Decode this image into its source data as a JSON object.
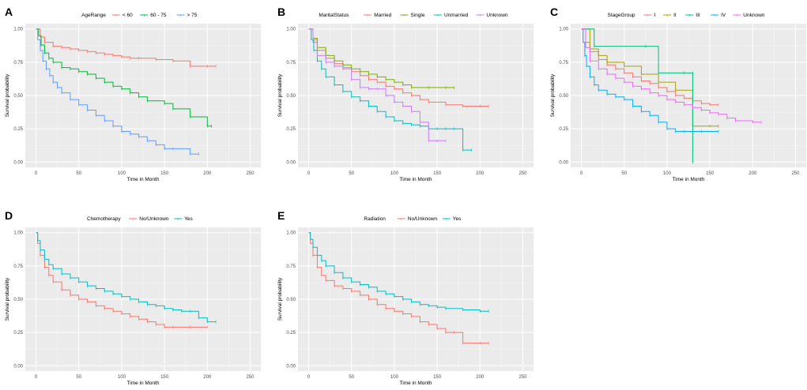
{
  "chart_data": [
    {
      "panel": "A",
      "type": "line",
      "legend_title": "AgeRange",
      "xlabel": "Time in Month",
      "ylabel": "Survival probability",
      "xlim": [
        0,
        250
      ],
      "ylim": [
        0,
        1
      ],
      "xticks": [
        "0",
        "50",
        "100",
        "150",
        "200",
        "250"
      ],
      "yticks": [
        "0.00",
        "0.25",
        "0.50",
        "0.75",
        "1.00"
      ],
      "series": [
        {
          "name": "< 60",
          "color": "#f8766d",
          "x": [
            0,
            5,
            10,
            20,
            30,
            40,
            50,
            60,
            70,
            80,
            90,
            100,
            110,
            120,
            140,
            160,
            180,
            200,
            210
          ],
          "y": [
            1.0,
            0.94,
            0.9,
            0.87,
            0.86,
            0.85,
            0.84,
            0.83,
            0.82,
            0.81,
            0.8,
            0.79,
            0.78,
            0.78,
            0.77,
            0.76,
            0.72,
            0.72,
            0.72
          ]
        },
        {
          "name": "60 - 75",
          "color": "#00ba38",
          "x": [
            0,
            3,
            6,
            10,
            15,
            20,
            30,
            40,
            50,
            60,
            70,
            80,
            90,
            100,
            110,
            120,
            130,
            150,
            160,
            180,
            200,
            205
          ],
          "y": [
            1.0,
            0.95,
            0.88,
            0.82,
            0.78,
            0.75,
            0.71,
            0.7,
            0.68,
            0.66,
            0.63,
            0.6,
            0.57,
            0.55,
            0.52,
            0.49,
            0.46,
            0.44,
            0.4,
            0.34,
            0.27,
            0.27
          ]
        },
        {
          "name": "> 75",
          "color": "#619cff",
          "x": [
            0,
            2,
            5,
            8,
            12,
            16,
            20,
            25,
            30,
            40,
            50,
            60,
            70,
            80,
            90,
            100,
            110,
            120,
            130,
            140,
            150,
            160,
            180,
            190
          ],
          "y": [
            1.0,
            0.92,
            0.84,
            0.76,
            0.7,
            0.65,
            0.6,
            0.56,
            0.52,
            0.47,
            0.43,
            0.39,
            0.35,
            0.31,
            0.27,
            0.23,
            0.21,
            0.19,
            0.16,
            0.13,
            0.1,
            0.1,
            0.06,
            0.06
          ]
        }
      ]
    },
    {
      "panel": "B",
      "type": "line",
      "legend_title": "MaritalStatus",
      "xlabel": "Time in Month",
      "ylabel": "Survival probability",
      "xlim": [
        0,
        250
      ],
      "ylim": [
        0,
        1
      ],
      "xticks": [
        "0",
        "50",
        "100",
        "150",
        "200",
        "250"
      ],
      "yticks": [
        "0.00",
        "0.25",
        "0.50",
        "0.75",
        "1.00"
      ],
      "series": [
        {
          "name": "Married",
          "color": "#f8766d",
          "x": [
            0,
            5,
            10,
            20,
            30,
            40,
            50,
            60,
            70,
            80,
            90,
            100,
            110,
            120,
            130,
            140,
            160,
            180,
            200,
            210
          ],
          "y": [
            1.0,
            0.92,
            0.84,
            0.78,
            0.74,
            0.71,
            0.68,
            0.65,
            0.62,
            0.6,
            0.57,
            0.55,
            0.52,
            0.5,
            0.47,
            0.45,
            0.43,
            0.42,
            0.42,
            0.42
          ]
        },
        {
          "name": "Single",
          "color": "#7cae00",
          "x": [
            0,
            5,
            10,
            20,
            30,
            40,
            50,
            60,
            70,
            80,
            90,
            100,
            110,
            120,
            140,
            160,
            170
          ],
          "y": [
            1.0,
            0.93,
            0.86,
            0.8,
            0.76,
            0.73,
            0.7,
            0.68,
            0.66,
            0.64,
            0.62,
            0.6,
            0.58,
            0.56,
            0.56,
            0.56,
            0.56
          ]
        },
        {
          "name": "Unmarried",
          "color": "#00bfc4",
          "x": [
            0,
            3,
            6,
            10,
            15,
            20,
            30,
            40,
            50,
            60,
            70,
            80,
            90,
            100,
            110,
            120,
            130,
            140,
            150,
            160,
            170,
            180,
            190
          ],
          "y": [
            1.0,
            0.92,
            0.84,
            0.76,
            0.7,
            0.64,
            0.58,
            0.53,
            0.49,
            0.46,
            0.42,
            0.38,
            0.34,
            0.31,
            0.29,
            0.28,
            0.27,
            0.25,
            0.25,
            0.25,
            0.25,
            0.09,
            0.09
          ]
        },
        {
          "name": "Unknown",
          "color": "#c77cff",
          "x": [
            0,
            5,
            10,
            20,
            30,
            40,
            50,
            60,
            70,
            80,
            90,
            100,
            110,
            120,
            130,
            140,
            150,
            160
          ],
          "y": [
            1.0,
            0.9,
            0.8,
            0.75,
            0.72,
            0.7,
            0.62,
            0.56,
            0.55,
            0.55,
            0.5,
            0.45,
            0.42,
            0.38,
            0.3,
            0.16,
            0.16,
            0.16
          ]
        }
      ]
    },
    {
      "panel": "C",
      "type": "line",
      "legend_title": "StageGroup",
      "xlabel": "Time in Month",
      "ylabel": "Survival probability",
      "xlim": [
        0,
        250
      ],
      "ylim": [
        0,
        1
      ],
      "xticks": [
        "0",
        "50",
        "100",
        "150",
        "200",
        "250"
      ],
      "yticks": [
        "0.00",
        "0.25",
        "0.50",
        "0.75",
        "1.00"
      ],
      "series": [
        {
          "name": "I",
          "color": "#f8766d",
          "x": [
            0,
            5,
            10,
            20,
            30,
            40,
            50,
            60,
            70,
            80,
            90,
            100,
            110,
            120,
            130,
            140,
            150,
            160
          ],
          "y": [
            1.0,
            0.9,
            0.83,
            0.77,
            0.73,
            0.7,
            0.67,
            0.64,
            0.61,
            0.59,
            0.56,
            0.53,
            0.5,
            0.48,
            0.46,
            0.44,
            0.43,
            0.43
          ]
        },
        {
          "name": "II",
          "color": "#a3a500",
          "x": [
            0,
            10,
            20,
            30,
            50,
            70,
            90,
            110,
            130,
            150,
            160
          ],
          "y": [
            1.0,
            0.85,
            0.8,
            0.75,
            0.72,
            0.66,
            0.6,
            0.54,
            0.27,
            0.27,
            0.27
          ]
        },
        {
          "name": "III",
          "color": "#00bf7d",
          "x": [
            0,
            10,
            15,
            75,
            90,
            120,
            130,
            130
          ],
          "y": [
            1.0,
            1.0,
            0.87,
            0.87,
            0.67,
            0.67,
            0.67,
            0.0
          ]
        },
        {
          "name": "IV",
          "color": "#00b0f6",
          "x": [
            0,
            2,
            4,
            6,
            10,
            15,
            20,
            30,
            40,
            50,
            60,
            70,
            80,
            90,
            100,
            110,
            120,
            140,
            160
          ],
          "y": [
            1.0,
            0.9,
            0.8,
            0.72,
            0.64,
            0.58,
            0.54,
            0.51,
            0.49,
            0.47,
            0.42,
            0.38,
            0.35,
            0.3,
            0.25,
            0.23,
            0.23,
            0.23,
            0.23
          ]
        },
        {
          "name": "Unknown",
          "color": "#e76bf3",
          "x": [
            0,
            5,
            10,
            20,
            30,
            40,
            50,
            60,
            70,
            80,
            90,
            100,
            110,
            120,
            130,
            140,
            150,
            160,
            170,
            180,
            200,
            210
          ],
          "y": [
            1.0,
            0.86,
            0.76,
            0.7,
            0.66,
            0.63,
            0.6,
            0.57,
            0.55,
            0.52,
            0.5,
            0.47,
            0.45,
            0.43,
            0.41,
            0.39,
            0.37,
            0.36,
            0.33,
            0.31,
            0.3,
            0.3
          ]
        }
      ]
    },
    {
      "panel": "D",
      "type": "line",
      "legend_title": "Chemotherapy",
      "xlabel": "Time in Month",
      "ylabel": "Survival probability",
      "xlim": [
        0,
        250
      ],
      "ylim": [
        0,
        1
      ],
      "xticks": [
        "0",
        "50",
        "100",
        "150",
        "200",
        "250"
      ],
      "yticks": [
        "0.00",
        "0.25",
        "0.50",
        "0.75",
        "1.00"
      ],
      "series": [
        {
          "name": "No/Unknown",
          "color": "#f8766d",
          "x": [
            0,
            2,
            5,
            10,
            15,
            20,
            30,
            40,
            50,
            60,
            70,
            80,
            90,
            100,
            110,
            120,
            130,
            140,
            150,
            160,
            180,
            200
          ],
          "y": [
            1.0,
            0.92,
            0.83,
            0.74,
            0.68,
            0.63,
            0.57,
            0.53,
            0.5,
            0.48,
            0.45,
            0.43,
            0.41,
            0.39,
            0.37,
            0.35,
            0.33,
            0.31,
            0.29,
            0.29,
            0.29,
            0.29
          ]
        },
        {
          "name": "Yes",
          "color": "#00bfc4",
          "x": [
            0,
            2,
            5,
            10,
            15,
            20,
            30,
            40,
            50,
            60,
            70,
            80,
            90,
            100,
            110,
            120,
            130,
            140,
            150,
            160,
            170,
            180,
            190,
            200,
            210
          ],
          "y": [
            1.0,
            0.94,
            0.87,
            0.8,
            0.76,
            0.73,
            0.69,
            0.66,
            0.63,
            0.6,
            0.58,
            0.56,
            0.54,
            0.52,
            0.5,
            0.48,
            0.46,
            0.45,
            0.43,
            0.42,
            0.41,
            0.41,
            0.36,
            0.33,
            0.33
          ]
        }
      ]
    },
    {
      "panel": "E",
      "type": "line",
      "legend_title": "Radiation",
      "xlabel": "Time in Month",
      "ylabel": "Survival probability",
      "xlim": [
        0,
        250
      ],
      "ylim": [
        0,
        1
      ],
      "xticks": [
        "0",
        "50",
        "100",
        "150",
        "200",
        "250"
      ],
      "yticks": [
        "0.00",
        "0.25",
        "0.50",
        "0.75",
        "1.00"
      ],
      "series": [
        {
          "name": "No/Unknown",
          "color": "#f8766d",
          "x": [
            0,
            2,
            5,
            10,
            15,
            20,
            30,
            40,
            50,
            60,
            70,
            80,
            90,
            100,
            110,
            120,
            130,
            140,
            150,
            160,
            170,
            180,
            200,
            210
          ],
          "y": [
            1.0,
            0.92,
            0.83,
            0.74,
            0.68,
            0.64,
            0.6,
            0.58,
            0.56,
            0.53,
            0.5,
            0.46,
            0.43,
            0.41,
            0.39,
            0.37,
            0.33,
            0.31,
            0.28,
            0.25,
            0.25,
            0.17,
            0.17,
            0.17
          ]
        },
        {
          "name": "Yes",
          "color": "#00bfc4",
          "x": [
            0,
            2,
            5,
            10,
            15,
            20,
            30,
            40,
            50,
            60,
            70,
            80,
            90,
            100,
            110,
            120,
            130,
            140,
            150,
            160,
            180,
            200,
            210
          ],
          "y": [
            1.0,
            0.95,
            0.89,
            0.83,
            0.79,
            0.75,
            0.7,
            0.66,
            0.63,
            0.61,
            0.59,
            0.56,
            0.54,
            0.52,
            0.5,
            0.48,
            0.46,
            0.45,
            0.44,
            0.43,
            0.42,
            0.41,
            0.41
          ]
        }
      ]
    }
  ]
}
